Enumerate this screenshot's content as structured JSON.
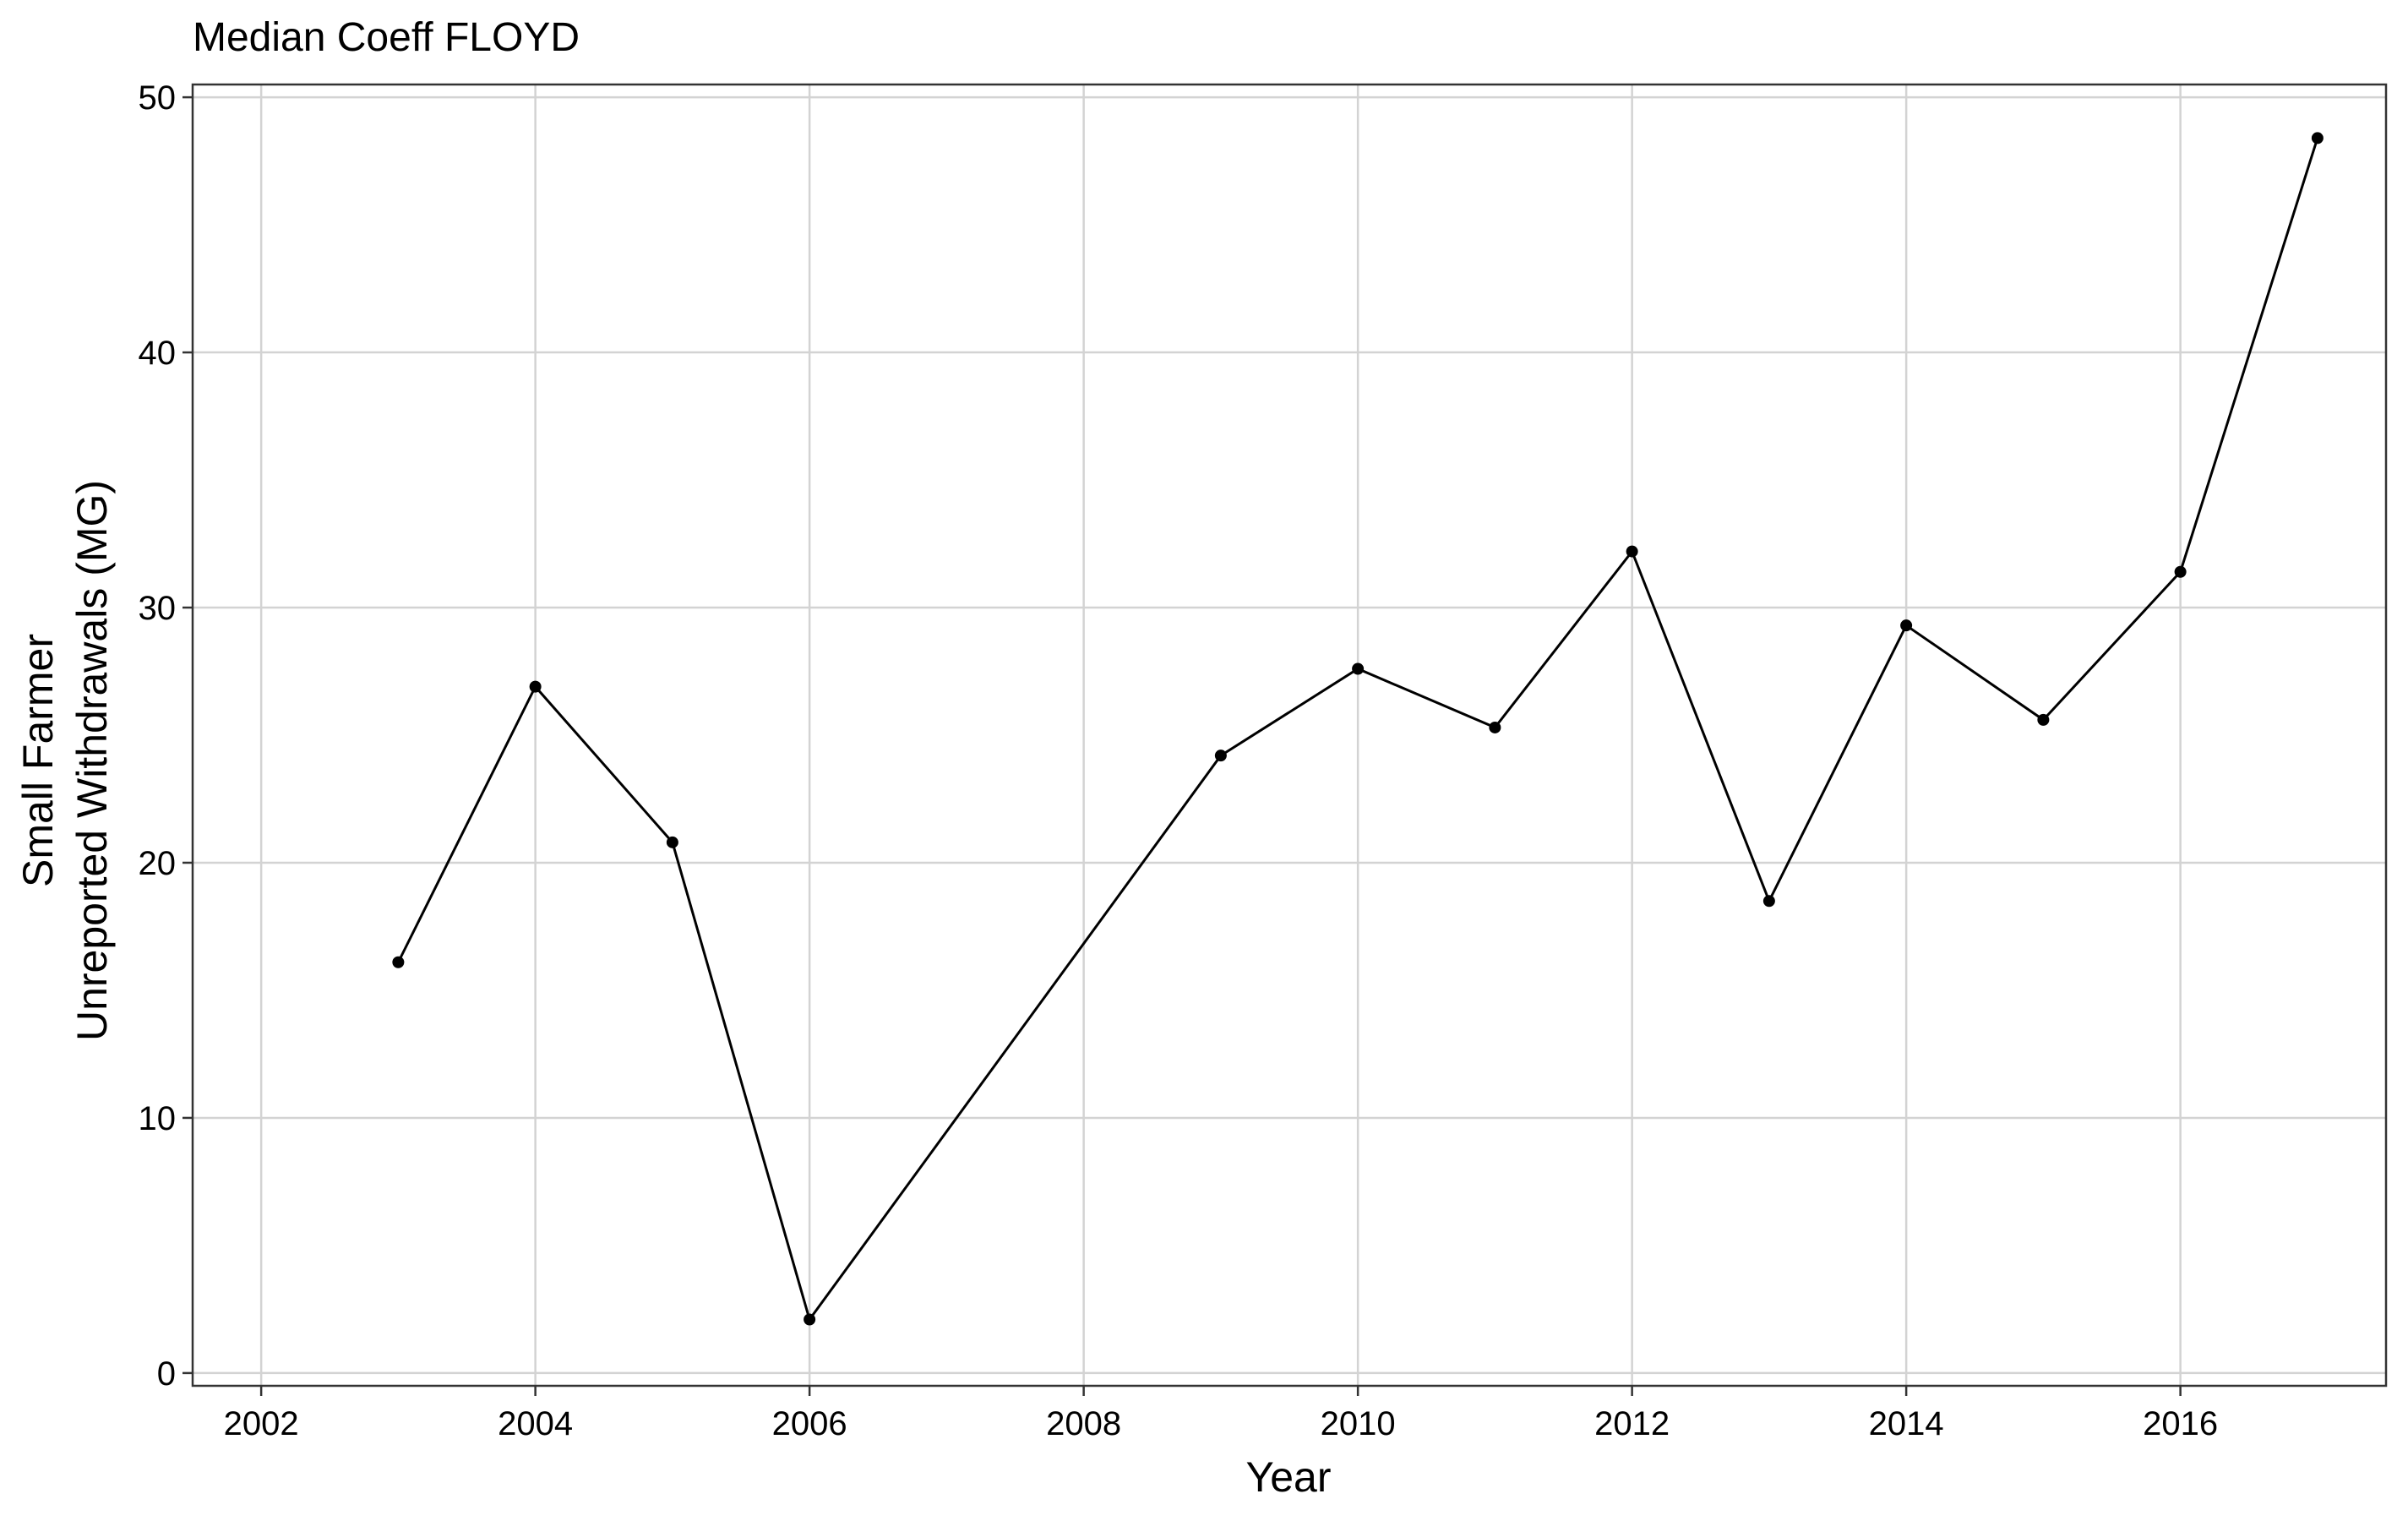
{
  "chart_data": {
    "type": "line",
    "title": "Median Coeff FLOYD",
    "xlabel": "Year",
    "ylabel_lines": [
      "Small Farmer",
      "Unreported Withdrawals (MG)"
    ],
    "xlim": [
      2001.5,
      2017.5
    ],
    "ylim": [
      -0.5,
      50.5
    ],
    "xticks": [
      2002,
      2004,
      2006,
      2008,
      2010,
      2012,
      2014,
      2016
    ],
    "xtick_labels": [
      "2002",
      "2004",
      "2006",
      "2008",
      "2010",
      "2012",
      "2014",
      "2016"
    ],
    "yticks": [
      0,
      10,
      20,
      30,
      40,
      50
    ],
    "ytick_labels": [
      "0",
      "10",
      "20",
      "30",
      "40",
      "50"
    ],
    "grid": true,
    "legend": "none",
    "series": [
      {
        "color": "#000000",
        "points": [
          {
            "x": 2003.0,
            "y": 16.1
          },
          {
            "x": 2004.0,
            "y": 26.9
          },
          {
            "x": 2005.0,
            "y": 20.8
          },
          {
            "x": 2006.0,
            "y": 2.1
          },
          {
            "x": 2009.0,
            "y": 24.2
          },
          {
            "x": 2010.0,
            "y": 27.6
          },
          {
            "x": 2011.0,
            "y": 25.3
          },
          {
            "x": 2012.0,
            "y": 32.2
          },
          {
            "x": 2013.0,
            "y": 18.5
          },
          {
            "x": 2014.0,
            "y": 29.3
          },
          {
            "x": 2015.0,
            "y": 25.6
          },
          {
            "x": 2016.0,
            "y": 31.4
          },
          {
            "x": 2017.0,
            "y": 48.4
          }
        ]
      }
    ]
  }
}
